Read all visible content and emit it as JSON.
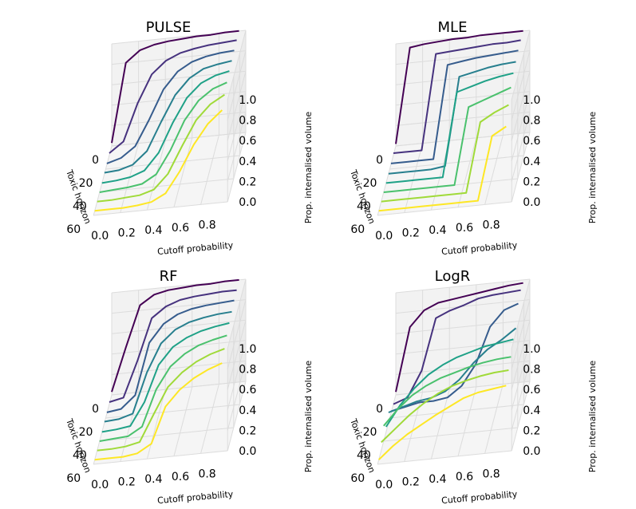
{
  "chart_data": [
    {
      "type": "line3d",
      "title": "PULSE",
      "xlabel": "Cutoff probability",
      "ylabel": "Toxic horizon",
      "zlabel": "Prop. internalised volume",
      "xticks": [
        "0.0",
        "0.2",
        "0.4",
        "0.6",
        "0.8"
      ],
      "yticks": [
        "0",
        "20",
        "40",
        "60"
      ],
      "zticks": [
        "0.0",
        "0.2",
        "0.4",
        "0.6",
        "0.8",
        "1.0"
      ],
      "horizons": [
        0,
        8,
        16,
        24,
        32,
        40,
        48,
        56
      ],
      "series": [
        {
          "horizon": 0,
          "values": [
            0.03,
            0.8,
            0.91,
            0.95,
            0.97,
            0.98,
            0.99,
            0.99,
            1.0,
            1.0
          ]
        },
        {
          "horizon": 8,
          "values": [
            0.02,
            0.12,
            0.48,
            0.75,
            0.87,
            0.93,
            0.96,
            0.98,
            0.99,
            1.0
          ]
        },
        {
          "horizon": 16,
          "values": [
            0.01,
            0.05,
            0.15,
            0.4,
            0.68,
            0.84,
            0.92,
            0.96,
            0.98,
            0.99
          ]
        },
        {
          "horizon": 24,
          "values": [
            0.01,
            0.02,
            0.06,
            0.18,
            0.45,
            0.7,
            0.85,
            0.93,
            0.96,
            0.98
          ]
        },
        {
          "horizon": 32,
          "values": [
            0.0,
            0.01,
            0.03,
            0.08,
            0.24,
            0.52,
            0.75,
            0.88,
            0.94,
            0.97
          ]
        },
        {
          "horizon": 40,
          "values": [
            0.0,
            0.01,
            0.02,
            0.04,
            0.12,
            0.34,
            0.62,
            0.8,
            0.9,
            0.95
          ]
        },
        {
          "horizon": 48,
          "values": [
            0.0,
            0.0,
            0.01,
            0.02,
            0.06,
            0.2,
            0.46,
            0.7,
            0.84,
            0.92
          ]
        },
        {
          "horizon": 56,
          "values": [
            0.0,
            0.0,
            0.0,
            0.01,
            0.03,
            0.1,
            0.3,
            0.55,
            0.74,
            0.86
          ]
        }
      ]
    },
    {
      "type": "line3d",
      "title": "MLE",
      "xlabel": "Cutoff probability",
      "ylabel": "Toxic horizon",
      "zlabel": "Prop. internalised volume",
      "xticks": [
        "0.0",
        "0.2",
        "0.4",
        "0.6",
        "0.8"
      ],
      "yticks": [
        "0",
        "20",
        "40",
        "60"
      ],
      "zticks": [
        "0.0",
        "0.2",
        "0.4",
        "0.6",
        "0.8",
        "1.0"
      ],
      "horizons": [
        0,
        8,
        16,
        24,
        32,
        40,
        48,
        56
      ],
      "series": [
        {
          "horizon": 0,
          "values": [
            0.02,
            0.95,
            0.97,
            0.98,
            0.99,
            0.99,
            1.0,
            1.0,
            1.0,
            1.0
          ]
        },
        {
          "horizon": 8,
          "values": [
            0.02,
            0.02,
            0.02,
            0.95,
            0.96,
            0.97,
            0.98,
            0.99,
            0.99,
            1.0
          ]
        },
        {
          "horizon": 16,
          "values": [
            0.01,
            0.01,
            0.01,
            0.01,
            0.92,
            0.94,
            0.96,
            0.97,
            0.98,
            0.99
          ]
        },
        {
          "horizon": 24,
          "values": [
            0.0,
            0.0,
            0.0,
            0.0,
            0.02,
            0.88,
            0.91,
            0.94,
            0.96,
            0.97
          ]
        },
        {
          "horizon": 32,
          "values": [
            0.0,
            0.0,
            0.0,
            0.0,
            0.0,
            0.82,
            0.86,
            0.9,
            0.93,
            0.95
          ]
        },
        {
          "horizon": 40,
          "values": [
            0.0,
            0.0,
            0.0,
            0.0,
            0.0,
            0.0,
            0.75,
            0.8,
            0.85,
            0.9
          ]
        },
        {
          "horizon": 48,
          "values": [
            0.0,
            0.0,
            0.0,
            0.0,
            0.0,
            0.0,
            0.0,
            0.68,
            0.76,
            0.82
          ]
        },
        {
          "horizon": 56,
          "values": [
            0.0,
            0.0,
            0.0,
            0.0,
            0.0,
            0.0,
            0.0,
            0.0,
            0.62,
            0.7
          ]
        }
      ]
    },
    {
      "type": "line3d",
      "title": "RF",
      "xlabel": "Cutoff probability",
      "ylabel": "Toxic horizon",
      "zlabel": "Prop. internalised volume",
      "xticks": [
        "0.0",
        "0.2",
        "0.4",
        "0.6",
        "0.8"
      ],
      "yticks": [
        "0",
        "20",
        "40",
        "60"
      ],
      "zticks": [
        "0.0",
        "0.2",
        "0.4",
        "0.6",
        "0.8",
        "1.0"
      ],
      "horizons": [
        0,
        8,
        16,
        24,
        32,
        40,
        48,
        56
      ],
      "series": [
        {
          "horizon": 0,
          "values": [
            0.03,
            0.45,
            0.85,
            0.94,
            0.97,
            0.98,
            0.99,
            0.99,
            1.0,
            1.0
          ]
        },
        {
          "horizon": 8,
          "values": [
            0.02,
            0.05,
            0.4,
            0.8,
            0.9,
            0.95,
            0.97,
            0.98,
            0.99,
            0.99
          ]
        },
        {
          "horizon": 16,
          "values": [
            0.01,
            0.03,
            0.15,
            0.65,
            0.82,
            0.9,
            0.94,
            0.96,
            0.97,
            0.98
          ]
        },
        {
          "horizon": 24,
          "values": [
            0.01,
            0.02,
            0.06,
            0.45,
            0.72,
            0.84,
            0.9,
            0.93,
            0.95,
            0.96
          ]
        },
        {
          "horizon": 32,
          "values": [
            0.0,
            0.01,
            0.03,
            0.25,
            0.6,
            0.76,
            0.84,
            0.89,
            0.92,
            0.94
          ]
        },
        {
          "horizon": 40,
          "values": [
            0.0,
            0.01,
            0.02,
            0.1,
            0.45,
            0.66,
            0.77,
            0.84,
            0.88,
            0.91
          ]
        },
        {
          "horizon": 48,
          "values": [
            0.0,
            0.0,
            0.01,
            0.04,
            0.3,
            0.55,
            0.68,
            0.77,
            0.83,
            0.87
          ]
        },
        {
          "horizon": 56,
          "values": [
            0.0,
            0.0,
            0.0,
            0.02,
            0.1,
            0.45,
            0.6,
            0.7,
            0.77,
            0.82
          ]
        }
      ]
    },
    {
      "type": "line3d",
      "title": "LogR",
      "xlabel": "Cutoff probability",
      "ylabel": "Toxic horizon",
      "zlabel": "Prop. internalised volume",
      "xticks": [
        "0.0",
        "0.2",
        "0.4",
        "0.6",
        "0.8"
      ],
      "yticks": [
        "0",
        "20",
        "40",
        "60"
      ],
      "zticks": [
        "0.0",
        "0.2",
        "0.4",
        "0.6",
        "0.8",
        "1.0"
      ],
      "horizons": [
        0,
        8,
        16,
        24,
        32,
        40,
        48,
        56
      ],
      "series": [
        {
          "horizon": 0,
          "values": [
            0.03,
            0.65,
            0.8,
            0.86,
            0.88,
            0.9,
            0.92,
            0.94,
            0.96,
            0.97
          ]
        },
        {
          "horizon": 8,
          "values": [
            0.0,
            0.05,
            0.3,
            0.8,
            0.86,
            0.9,
            0.95,
            0.97,
            0.98,
            0.99
          ]
        },
        {
          "horizon": 16,
          "values": [
            0.02,
            0.05,
            0.08,
            0.08,
            0.1,
            0.2,
            0.4,
            0.75,
            0.9,
            0.95
          ]
        },
        {
          "horizon": 24,
          "values": [
            0.1,
            0.14,
            0.18,
            0.2,
            0.25,
            0.35,
            0.5,
            0.62,
            0.7,
            0.8
          ]
        },
        {
          "horizon": 32,
          "values": [
            0.05,
            0.25,
            0.4,
            0.52,
            0.6,
            0.66,
            0.7,
            0.74,
            0.76,
            0.78
          ]
        },
        {
          "horizon": 40,
          "values": [
            0.15,
            0.3,
            0.42,
            0.5,
            0.56,
            0.6,
            0.64,
            0.67,
            0.69,
            0.7
          ]
        },
        {
          "horizon": 48,
          "values": [
            0.08,
            0.2,
            0.32,
            0.42,
            0.5,
            0.56,
            0.6,
            0.63,
            0.65,
            0.66
          ]
        },
        {
          "horizon": 56,
          "values": [
            0.0,
            0.12,
            0.22,
            0.3,
            0.38,
            0.45,
            0.52,
            0.56,
            0.58,
            0.6
          ]
        }
      ]
    }
  ],
  "colors": [
    "#440154",
    "#46327e",
    "#365c8d",
    "#277f8e",
    "#1fa187",
    "#4ac16d",
    "#a0da39",
    "#fde725"
  ]
}
